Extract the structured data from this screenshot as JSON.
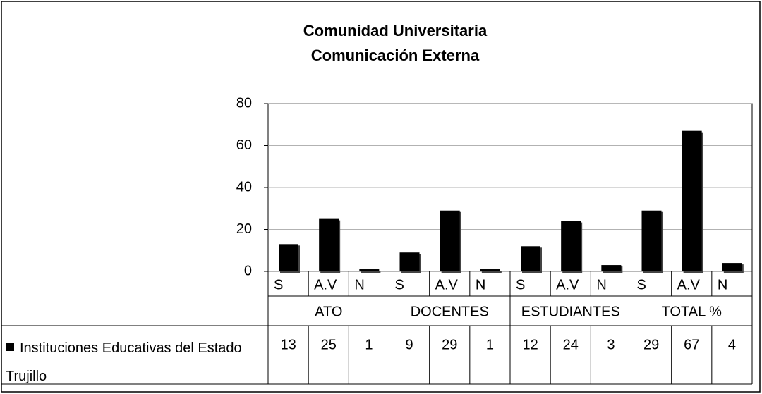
{
  "chart_data": {
    "type": "bar",
    "title": [
      "Comunidad Universitaria",
      "Comunicación Externa"
    ],
    "categories": [
      "S",
      "A.V",
      "N",
      "S",
      "A.V",
      "N",
      "S",
      "A.V",
      "N",
      "S",
      "A.V",
      "N"
    ],
    "groups": [
      "ATO",
      "DOCENTES",
      "ESTUDIANTES",
      "TOTAL %"
    ],
    "series": [
      {
        "name": "Instituciones Educativas del Estado Trujillo",
        "color": "#000000",
        "values": [
          13,
          25,
          1,
          9,
          29,
          1,
          12,
          24,
          3,
          29,
          67,
          4
        ]
      }
    ],
    "ylim": [
      0,
      80
    ],
    "yticks": [
      0,
      20,
      40,
      60,
      80
    ],
    "grid": true,
    "data_table": true
  }
}
